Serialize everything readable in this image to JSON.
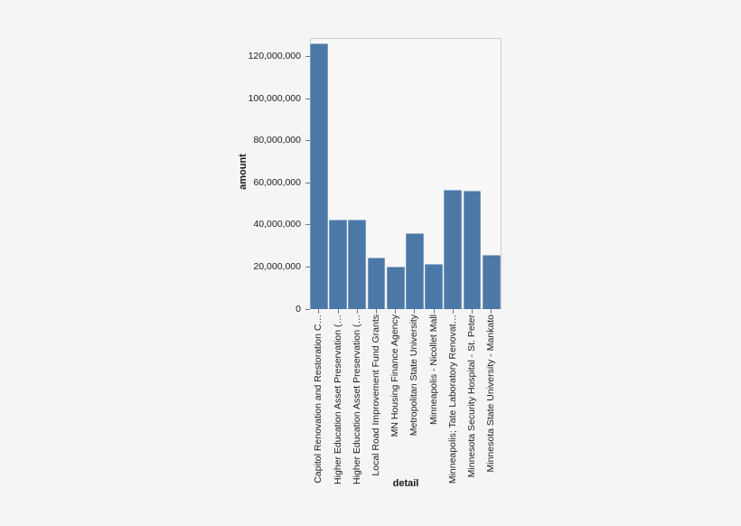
{
  "page": {
    "background": "#f5f5f5",
    "plot_background": "#f7f7f7",
    "border_color": "#cfcfcf",
    "text_color": "#212121"
  },
  "chart_data": {
    "type": "bar",
    "title": "",
    "xlabel": "detail",
    "ylabel": "amount",
    "categories": [
      "Capitol Renovation and Restoration C…",
      "Higher Education Asset Preservation (…",
      "Higher Education Asset Preservation (…",
      "Local Road Improvement Fund Grants",
      "MN Housing Finance Agency",
      "Metropolitan State University",
      "Minneapolis - Nicollet Mall",
      "Minneapolis; Tate Laboratory Renovat…",
      "Minnesota Security Hospital - St. Peter",
      "Minnesota State University - Mankato"
    ],
    "values": [
      126300000,
      42500000,
      42500000,
      24500000,
      20000000,
      36000000,
      21500000,
      56700000,
      56300000,
      25800000
    ],
    "ylim": [
      0,
      128000000
    ],
    "yticks": [
      0,
      20000000,
      40000000,
      60000000,
      80000000,
      100000000,
      120000000
    ],
    "ytick_labels": [
      "0",
      "20,000,000",
      "40,000,000",
      "60,000,000",
      "80,000,000",
      "100,000,000",
      "120,000,000"
    ],
    "bar_color": "#4c78a8",
    "grid": false,
    "legend": "none"
  }
}
